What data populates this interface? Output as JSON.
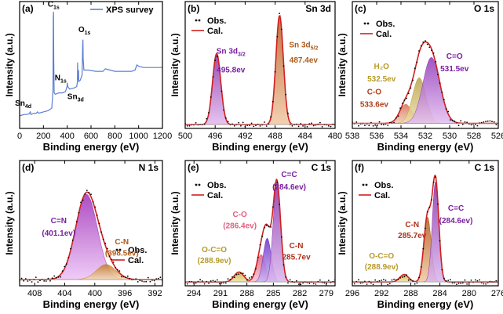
{
  "figure": {
    "ylabel": "Intensity (a.u.)",
    "xlabel": "Binding energy (eV)"
  },
  "chart_data": [
    {
      "id": "a",
      "panel_label": "(a)",
      "type": "line",
      "title": "",
      "legend": [
        {
          "name": "XPS survey",
          "color": "#5b7fd4"
        }
      ],
      "xlim": [
        0,
        1200
      ],
      "xticks": [
        0,
        200,
        400,
        600,
        800,
        1000,
        1200
      ],
      "xdir": "normal",
      "ylim": [
        0,
        1
      ],
      "series": [
        {
          "name": "XPS survey",
          "color": "#5b7fd4",
          "points": [
            [
              0,
              0.1
            ],
            [
              20,
              0.105
            ],
            [
              40,
              0.11
            ],
            [
              60,
              0.11
            ],
            [
              80,
              0.115
            ],
            [
              90,
              0.13
            ],
            [
              95,
              0.11
            ],
            [
              120,
              0.12
            ],
            [
              140,
              0.12
            ],
            [
              150,
              0.13
            ],
            [
              160,
              0.12
            ],
            [
              200,
              0.13
            ],
            [
              240,
              0.14
            ],
            [
              270,
              0.16
            ],
            [
              280,
              0.3
            ],
            [
              283,
              0.88
            ],
            [
              285,
              0.92
            ],
            [
              287,
              0.55
            ],
            [
              290,
              0.28
            ],
            [
              300,
              0.27
            ],
            [
              330,
              0.28
            ],
            [
              360,
              0.28
            ],
            [
              385,
              0.29
            ],
            [
              398,
              0.33
            ],
            [
              401,
              0.36
            ],
            [
              404,
              0.33
            ],
            [
              420,
              0.31
            ],
            [
              460,
              0.32
            ],
            [
              480,
              0.33
            ],
            [
              486,
              0.37
            ],
            [
              487,
              0.52
            ],
            [
              489,
              0.4
            ],
            [
              494,
              0.38
            ],
            [
              495,
              0.46
            ],
            [
              497,
              0.37
            ],
            [
              510,
              0.38
            ],
            [
              525,
              0.42
            ],
            [
              530,
              0.67
            ],
            [
              532,
              0.7
            ],
            [
              534,
              0.55
            ],
            [
              540,
              0.46
            ],
            [
              580,
              0.46
            ],
            [
              640,
              0.45
            ],
            [
              700,
              0.45
            ],
            [
              720,
              0.47
            ],
            [
              760,
              0.46
            ],
            [
              800,
              0.45
            ],
            [
              860,
              0.45
            ],
            [
              940,
              0.45
            ],
            [
              970,
              0.46
            ],
            [
              985,
              0.5
            ],
            [
              1000,
              0.49
            ],
            [
              1040,
              0.48
            ],
            [
              1100,
              0.48
            ],
            [
              1150,
              0.48
            ],
            [
              1200,
              0.48
            ]
          ]
        }
      ],
      "annotations": [
        {
          "text": "C",
          "sub": "1s",
          "x": 285,
          "y": 0.96,
          "color": "#000"
        },
        {
          "text": "O",
          "sub": "1s",
          "x": 545,
          "y": 0.76,
          "color": "#000"
        },
        {
          "text": "N",
          "sub": "1s",
          "x": 345,
          "y": 0.38,
          "color": "#000"
        },
        {
          "text": "Sn",
          "sub": "3d",
          "x": 470,
          "y": 0.23,
          "color": "#000"
        },
        {
          "text": "Sn",
          "sub": "4d",
          "x": 30,
          "y": 0.18,
          "color": "#000"
        }
      ]
    },
    {
      "id": "b",
      "panel_label": "(b)",
      "type": "line",
      "title": "Sn 3d",
      "legend": [
        {
          "name": "Obs.",
          "color": "#000",
          "kind": "dot"
        },
        {
          "name": "Cal.",
          "color": "#d02020",
          "kind": "line"
        }
      ],
      "xlim": [
        500,
        480
      ],
      "xticks": [
        500,
        496,
        492,
        488,
        484,
        480
      ],
      "xdir": "reverse",
      "ylim": [
        0,
        1
      ],
      "peaks": [
        {
          "center": 495.8,
          "height": 0.56,
          "sigma": 0.55,
          "fill": "#8a2fa8",
          "fill2": "#e2b9ee"
        },
        {
          "center": 487.4,
          "height": 0.86,
          "sigma": 0.5,
          "fill": "#b85a1f",
          "fill2": "#f1c8a4"
        }
      ],
      "background": 0.03,
      "annotations": [
        {
          "text": "Sn 3d",
          "sub": "3/2",
          "x": 493.9,
          "y": 0.59,
          "color": "#7a1fa0"
        },
        {
          "text": "495.8ev",
          "x": 493.9,
          "y": 0.44,
          "color": "#7a1fa0"
        },
        {
          "text": "Sn 3d",
          "sub": "5/2",
          "x": 484.2,
          "y": 0.64,
          "color": "#b05a1a"
        },
        {
          "text": "487.4ev",
          "x": 484.2,
          "y": 0.52,
          "color": "#b05a1a"
        }
      ]
    },
    {
      "id": "c",
      "panel_label": "(c)",
      "type": "line",
      "title": "O 1s",
      "legend": [
        {
          "name": "Obs.",
          "color": "#000",
          "kind": "dot"
        },
        {
          "name": "Cal.",
          "color": "#d02020",
          "kind": "line"
        }
      ],
      "xlim": [
        538,
        526
      ],
      "xticks": [
        538,
        536,
        534,
        532,
        530,
        528,
        526
      ],
      "xdir": "reverse",
      "ylim": [
        0,
        1
      ],
      "peaks": [
        {
          "center": 533.6,
          "height": 0.15,
          "sigma": 0.5,
          "fill": "#d87050",
          "fill2": "#f4c9b6"
        },
        {
          "center": 532.5,
          "height": 0.36,
          "sigma": 0.55,
          "fill": "#b8a14a",
          "fill2": "#ece0a8"
        },
        {
          "center": 531.5,
          "height": 0.52,
          "sigma": 0.7,
          "fill": "#9038b8",
          "fill2": "#e3bdf0"
        }
      ],
      "background": 0.04,
      "annotations": [
        {
          "text": "O",
          "sub": "",
          "x": 0,
          "y": 0,
          "color": "#000",
          "hidden": true
        },
        {
          "text": "H₂O",
          "x": 535.6,
          "y": 0.47,
          "color": "#b79a2a"
        },
        {
          "text": "532.5ev",
          "x": 535.6,
          "y": 0.37,
          "color": "#b79a2a"
        },
        {
          "text": "C-O",
          "x": 536.2,
          "y": 0.27,
          "color": "#b0401a"
        },
        {
          "text": "533.6ev",
          "x": 536.2,
          "y": 0.17,
          "color": "#b0401a"
        },
        {
          "text": "C=O",
          "x": 529.6,
          "y": 0.55,
          "color": "#7a1fa0"
        },
        {
          "text": "531.5ev",
          "x": 529.6,
          "y": 0.45,
          "color": "#7a1fa0"
        }
      ]
    },
    {
      "id": "d",
      "panel_label": "(d)",
      "type": "line",
      "title": "N 1s",
      "legend": [
        {
          "name": "Obs.",
          "color": "#000",
          "kind": "dot"
        },
        {
          "name": "Cal.",
          "color": "#d02020",
          "kind": "line"
        }
      ],
      "xlim": [
        410,
        391
      ],
      "xticks": [
        408,
        404,
        400,
        396,
        392
      ],
      "xdir": "reverse",
      "ylim": [
        0,
        1
      ],
      "peaks": [
        {
          "center": 401.1,
          "height": 0.68,
          "sigma": 1.45,
          "fill": "#a030b8",
          "fill2": "#ecc3f6"
        },
        {
          "center": 398.5,
          "height": 0.12,
          "sigma": 1.3,
          "fill": "#c07a2a",
          "fill2": "#f3d9b4"
        }
      ],
      "background": 0.05,
      "annotations": [
        {
          "text": "C=N",
          "x": 404.8,
          "y": 0.5,
          "color": "#7a1fa0"
        },
        {
          "text": "(401.1ev)",
          "x": 404.8,
          "y": 0.4,
          "color": "#7a1fa0"
        },
        {
          "text": "C-N",
          "x": 396.4,
          "y": 0.33,
          "color": "#b05a1a"
        },
        {
          "text": "(398.5ev)",
          "x": 396.4,
          "y": 0.24,
          "color": "#b05a1a"
        }
      ]
    },
    {
      "id": "e",
      "panel_label": "(e)",
      "type": "line",
      "title": "C 1s",
      "legend": [
        {
          "name": "Obs.",
          "color": "#000",
          "kind": "dot"
        },
        {
          "name": "Cal.",
          "color": "#d02020",
          "kind": "line"
        }
      ],
      "xlim": [
        295,
        278
      ],
      "xticks": [
        294,
        291,
        288,
        285,
        282,
        279
      ],
      "xdir": "reverse",
      "ylim": [
        0,
        1
      ],
      "peaks": [
        {
          "center": 288.9,
          "height": 0.08,
          "sigma": 0.55,
          "fill": "#c9b040",
          "fill2": "#efe2a0"
        },
        {
          "center": 286.4,
          "height": 0.22,
          "sigma": 0.5,
          "fill": "#e05a7a",
          "fill2": "#f7c3d0"
        },
        {
          "center": 285.7,
          "height": 0.35,
          "sigma": 0.45,
          "fill": "#6a2cc8",
          "fill2": "#c9b3f2"
        },
        {
          "center": 284.6,
          "height": 0.8,
          "sigma": 0.42,
          "fill": "#8a2fa8",
          "fill2": "#d9b6ee"
        }
      ],
      "background": 0.03,
      "annotations": [
        {
          "text": "C=C",
          "x": 283.2,
          "y": 0.87,
          "color": "#7a1fa0"
        },
        {
          "text": "(284.6ev)",
          "x": 283.2,
          "y": 0.77,
          "color": "#7a1fa0"
        },
        {
          "text": "C-O",
          "x": 288.8,
          "y": 0.55,
          "color": "#e06080"
        },
        {
          "text": "(286.4ev)",
          "x": 288.8,
          "y": 0.46,
          "color": "#e06080"
        },
        {
          "text": "C-N",
          "x": 282.4,
          "y": 0.3,
          "color": "#b0301a"
        },
        {
          "text": "285.7ev",
          "x": 282.4,
          "y": 0.21,
          "color": "#b0301a"
        },
        {
          "text": "O-C=O",
          "x": 291.7,
          "y": 0.27,
          "color": "#b79a2a"
        },
        {
          "text": "(288.9ev)",
          "x": 291.7,
          "y": 0.18,
          "color": "#b79a2a"
        }
      ]
    },
    {
      "id": "f",
      "panel_label": "(f)",
      "type": "line",
      "title": "C 1s",
      "legend": [
        {
          "name": "Obs.",
          "color": "#000",
          "kind": "dot"
        },
        {
          "name": "Cal.",
          "color": "#d02020",
          "kind": "line"
        }
      ],
      "xlim": [
        296,
        276
      ],
      "xticks": [
        296,
        292,
        288,
        284,
        280,
        276
      ],
      "xdir": "reverse",
      "ylim": [
        0,
        1
      ],
      "peaks": [
        {
          "center": 288.9,
          "height": 0.06,
          "sigma": 0.6,
          "fill": "#c9b040",
          "fill2": "#efe2a0"
        },
        {
          "center": 285.7,
          "height": 0.52,
          "sigma": 0.5,
          "fill": "#b05a1a",
          "fill2": "#f0c8a0"
        },
        {
          "center": 284.6,
          "height": 0.8,
          "sigma": 0.45,
          "fill": "#8a2fa8",
          "fill2": "#d9b6ee"
        }
      ],
      "background": 0.03,
      "annotations": [
        {
          "text": "C=C",
          "x": 281.8,
          "y": 0.6,
          "color": "#7a1fa0"
        },
        {
          "text": "(284.6ev)",
          "x": 281.8,
          "y": 0.5,
          "color": "#7a1fa0"
        },
        {
          "text": "C-N",
          "x": 287.8,
          "y": 0.47,
          "color": "#b0301a"
        },
        {
          "text": "285.7ev",
          "x": 287.8,
          "y": 0.38,
          "color": "#b0301a"
        },
        {
          "text": "O-C=O",
          "x": 292.0,
          "y": 0.22,
          "color": "#b79a2a"
        },
        {
          "text": "(288.9ev)",
          "x": 292.0,
          "y": 0.13,
          "color": "#b79a2a"
        }
      ]
    }
  ]
}
